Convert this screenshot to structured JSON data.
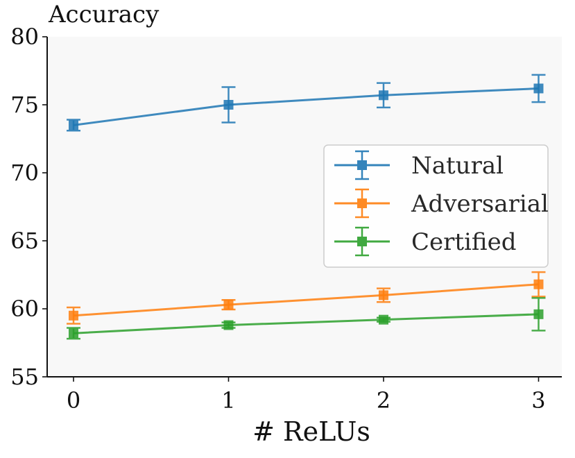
{
  "chart_data": {
    "type": "line",
    "title": "",
    "xlabel": "# ReLUs",
    "ylabel": "Accuracy",
    "x": [
      0,
      1,
      2,
      3
    ],
    "xlim": [
      -0.17,
      3.15
    ],
    "ylim": [
      55,
      80
    ],
    "xticks": [
      "0",
      "1",
      "2",
      "3"
    ],
    "yticks": [
      "55",
      "60",
      "65",
      "70",
      "75",
      "80"
    ],
    "grid": false,
    "legend_position": "center-right",
    "series": [
      {
        "name": "Natural",
        "color": "#1f77b4",
        "values": [
          73.5,
          75.0,
          75.7,
          76.2
        ],
        "errors": [
          0.4,
          1.3,
          0.9,
          1.0
        ]
      },
      {
        "name": "Adversarial",
        "color": "#ff7f0e",
        "values": [
          59.5,
          60.3,
          61.0,
          61.8
        ],
        "errors": [
          0.6,
          0.35,
          0.5,
          0.9
        ]
      },
      {
        "name": "Certified",
        "color": "#2ca02c",
        "values": [
          58.2,
          58.8,
          59.2,
          59.6
        ],
        "errors": [
          0.4,
          0.2,
          0.15,
          1.2
        ]
      }
    ]
  }
}
